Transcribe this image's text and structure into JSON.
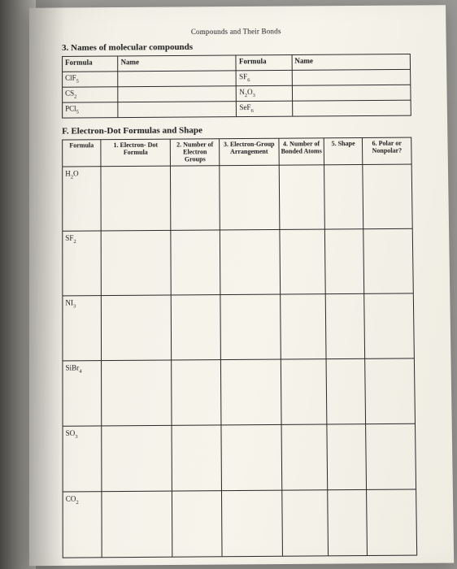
{
  "header": "Compounds and Their Bonds",
  "section3": {
    "title": "3. Names of molecular compounds",
    "headers": {
      "formula": "Formula",
      "name": "Name"
    },
    "left": [
      "ClF₅",
      "CS₂",
      "PCl₅"
    ],
    "right": [
      "SF₆",
      "N₂O₃",
      "SeF₆"
    ]
  },
  "sectionF": {
    "title": "F.  Electron-Dot Formulas and Shape",
    "cols": [
      "Formula",
      "1. Electron- Dot Formula",
      "2. Number of Electron Groups",
      "3. Electron-Group Arrangement",
      "4. Number of Bonded Atoms",
      "5. Shape",
      "6. Polar or Nonpolar?"
    ],
    "rows": [
      "H₂O",
      "SF₂",
      "NI₃",
      "SiBr₄",
      "SO₃",
      "CO₂"
    ]
  }
}
